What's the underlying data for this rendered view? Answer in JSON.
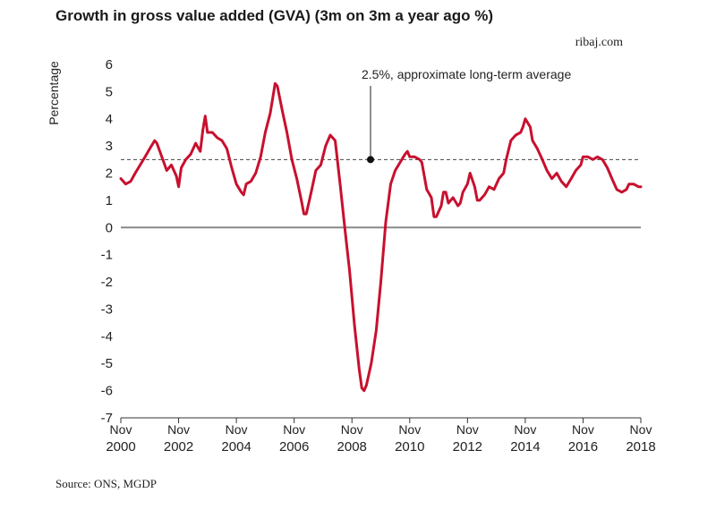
{
  "title": "Growth in gross value added (GVA) (3m on 3m a year ago %)",
  "brand": "ribaj.com",
  "source": "Source: ONS, MGDP",
  "chart_data": {
    "type": "line",
    "ylabel": "Percentage",
    "xlabel": "",
    "ylim": [
      -7,
      6
    ],
    "yticks": [
      6,
      5,
      4,
      3,
      2,
      1,
      0,
      -1,
      -2,
      -3,
      -4,
      -5,
      -6,
      -7
    ],
    "xlim": [
      2000.83,
      2018.83
    ],
    "xticks": [
      {
        "month": "Nov",
        "year": "2000",
        "x": 2000.83
      },
      {
        "month": "Nov",
        "year": "2002",
        "x": 2002.83
      },
      {
        "month": "Nov",
        "year": "2004",
        "x": 2004.83
      },
      {
        "month": "Nov",
        "year": "2006",
        "x": 2006.83
      },
      {
        "month": "Nov",
        "year": "2008",
        "x": 2008.83
      },
      {
        "month": "Nov",
        "year": "2010",
        "x": 2010.83
      },
      {
        "month": "Nov",
        "year": "2012",
        "x": 2012.83
      },
      {
        "month": "Nov",
        "year": "2014",
        "x": 2014.83
      },
      {
        "month": "Nov",
        "year": "2016",
        "x": 2016.83
      },
      {
        "month": "Nov",
        "year": "2018",
        "x": 2018.83
      }
    ],
    "reference_line": {
      "y": 2.5,
      "label": "2.5%, approximate long-term average"
    },
    "series": [
      {
        "color": "#c8102e",
        "points": [
          [
            2000.83,
            1.8
          ],
          [
            2001.0,
            1.6
          ],
          [
            2001.17,
            1.7
          ],
          [
            2001.33,
            2.0
          ],
          [
            2001.5,
            2.3
          ],
          [
            2001.67,
            2.6
          ],
          [
            2001.83,
            2.9
          ],
          [
            2002.0,
            3.2
          ],
          [
            2002.08,
            3.1
          ],
          [
            2002.25,
            2.6
          ],
          [
            2002.42,
            2.1
          ],
          [
            2002.58,
            2.3
          ],
          [
            2002.75,
            1.9
          ],
          [
            2002.83,
            1.5
          ],
          [
            2002.92,
            2.2
          ],
          [
            2003.08,
            2.5
          ],
          [
            2003.25,
            2.7
          ],
          [
            2003.42,
            3.1
          ],
          [
            2003.58,
            2.8
          ],
          [
            2003.67,
            3.6
          ],
          [
            2003.75,
            4.1
          ],
          [
            2003.83,
            3.5
          ],
          [
            2004.0,
            3.5
          ],
          [
            2004.17,
            3.3
          ],
          [
            2004.33,
            3.2
          ],
          [
            2004.5,
            2.9
          ],
          [
            2004.67,
            2.2
          ],
          [
            2004.83,
            1.6
          ],
          [
            2005.0,
            1.3
          ],
          [
            2005.08,
            1.2
          ],
          [
            2005.17,
            1.6
          ],
          [
            2005.33,
            1.7
          ],
          [
            2005.5,
            2.0
          ],
          [
            2005.67,
            2.6
          ],
          [
            2005.83,
            3.5
          ],
          [
            2006.0,
            4.2
          ],
          [
            2006.17,
            5.3
          ],
          [
            2006.25,
            5.2
          ],
          [
            2006.42,
            4.3
          ],
          [
            2006.58,
            3.5
          ],
          [
            2006.75,
            2.5
          ],
          [
            2006.92,
            1.8
          ],
          [
            2007.08,
            1.0
          ],
          [
            2007.17,
            0.5
          ],
          [
            2007.25,
            0.5
          ],
          [
            2007.42,
            1.3
          ],
          [
            2007.58,
            2.1
          ],
          [
            2007.75,
            2.3
          ],
          [
            2007.92,
            3.0
          ],
          [
            2008.08,
            3.4
          ],
          [
            2008.25,
            3.2
          ],
          [
            2008.42,
            1.6
          ],
          [
            2008.58,
            0.0
          ],
          [
            2008.75,
            -1.6
          ],
          [
            2008.92,
            -3.6
          ],
          [
            2009.08,
            -5.2
          ],
          [
            2009.17,
            -5.9
          ],
          [
            2009.25,
            -6.0
          ],
          [
            2009.33,
            -5.8
          ],
          [
            2009.5,
            -5.0
          ],
          [
            2009.67,
            -3.8
          ],
          [
            2009.83,
            -2.0
          ],
          [
            2010.0,
            0.2
          ],
          [
            2010.17,
            1.6
          ],
          [
            2010.33,
            2.1
          ],
          [
            2010.5,
            2.4
          ],
          [
            2010.67,
            2.7
          ],
          [
            2010.75,
            2.8
          ],
          [
            2010.83,
            2.6
          ],
          [
            2011.0,
            2.6
          ],
          [
            2011.17,
            2.5
          ],
          [
            2011.25,
            2.4
          ],
          [
            2011.42,
            1.4
          ],
          [
            2011.58,
            1.1
          ],
          [
            2011.67,
            0.4
          ],
          [
            2011.75,
            0.4
          ],
          [
            2011.92,
            0.8
          ],
          [
            2012.0,
            1.3
          ],
          [
            2012.08,
            1.3
          ],
          [
            2012.17,
            0.9
          ],
          [
            2012.33,
            1.1
          ],
          [
            2012.5,
            0.8
          ],
          [
            2012.58,
            0.9
          ],
          [
            2012.67,
            1.3
          ],
          [
            2012.83,
            1.6
          ],
          [
            2012.92,
            2.0
          ],
          [
            2013.08,
            1.5
          ],
          [
            2013.17,
            1.0
          ],
          [
            2013.25,
            1.0
          ],
          [
            2013.42,
            1.2
          ],
          [
            2013.58,
            1.5
          ],
          [
            2013.75,
            1.4
          ],
          [
            2013.92,
            1.8
          ],
          [
            2014.08,
            2.0
          ],
          [
            2014.17,
            2.5
          ],
          [
            2014.33,
            3.2
          ],
          [
            2014.5,
            3.4
          ],
          [
            2014.67,
            3.5
          ],
          [
            2014.75,
            3.7
          ],
          [
            2014.83,
            4.0
          ],
          [
            2015.0,
            3.7
          ],
          [
            2015.08,
            3.2
          ],
          [
            2015.25,
            2.9
          ],
          [
            2015.42,
            2.5
          ],
          [
            2015.58,
            2.1
          ],
          [
            2015.75,
            1.8
          ],
          [
            2015.92,
            2.0
          ],
          [
            2016.08,
            1.7
          ],
          [
            2016.25,
            1.5
          ],
          [
            2016.42,
            1.8
          ],
          [
            2016.58,
            2.1
          ],
          [
            2016.75,
            2.3
          ],
          [
            2016.83,
            2.6
          ],
          [
            2017.0,
            2.6
          ],
          [
            2017.17,
            2.5
          ],
          [
            2017.33,
            2.6
          ],
          [
            2017.5,
            2.5
          ],
          [
            2017.67,
            2.2
          ],
          [
            2017.83,
            1.8
          ],
          [
            2018.0,
            1.4
          ],
          [
            2018.17,
            1.3
          ],
          [
            2018.33,
            1.4
          ],
          [
            2018.42,
            1.6
          ],
          [
            2018.58,
            1.6
          ],
          [
            2018.75,
            1.5
          ],
          [
            2018.83,
            1.5
          ]
        ]
      }
    ]
  }
}
